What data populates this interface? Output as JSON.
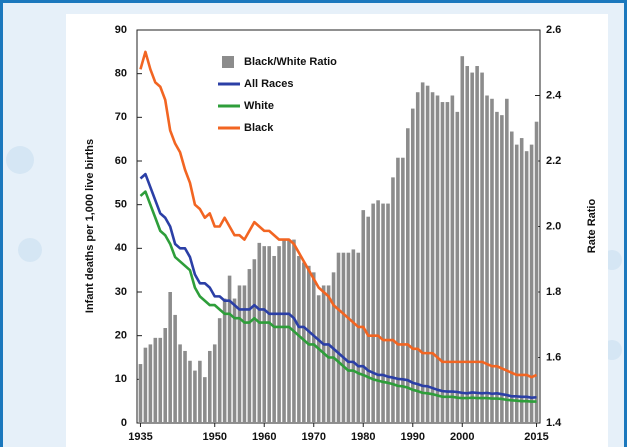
{
  "chart_data": {
    "type": "combo",
    "y_label": "Infant deaths per 1,000 live births",
    "y2_label": "Rate Ratio",
    "x": [
      1935,
      1936,
      1937,
      1938,
      1939,
      1940,
      1941,
      1942,
      1943,
      1944,
      1945,
      1946,
      1947,
      1948,
      1949,
      1950,
      1951,
      1952,
      1953,
      1954,
      1955,
      1956,
      1957,
      1958,
      1959,
      1960,
      1961,
      1962,
      1963,
      1964,
      1965,
      1966,
      1967,
      1968,
      1969,
      1970,
      1971,
      1972,
      1973,
      1974,
      1975,
      1976,
      1977,
      1978,
      1979,
      1980,
      1981,
      1982,
      1983,
      1984,
      1985,
      1986,
      1987,
      1988,
      1989,
      1990,
      1991,
      1992,
      1993,
      1994,
      1995,
      1996,
      1997,
      1998,
      1999,
      2000,
      2001,
      2002,
      2003,
      2004,
      2005,
      2006,
      2007,
      2008,
      2009,
      2010,
      2011,
      2012,
      2013,
      2014,
      2015
    ],
    "xlim": [
      1934.3,
      2015.7
    ],
    "xticks": [
      1935,
      1950,
      1960,
      1970,
      1980,
      1990,
      2000,
      2015
    ],
    "ylim": [
      0,
      90
    ],
    "yticks": [
      0,
      10,
      20,
      30,
      40,
      50,
      60,
      70,
      80,
      90
    ],
    "y2lim": [
      1.4,
      2.6
    ],
    "y2ticks": [
      1.4,
      1.6,
      1.8,
      {
        "value": 2,
        "label": "2.0"
      },
      2.2,
      2.4,
      2.6
    ],
    "legend": "upper-left",
    "series": [
      {
        "name": "Black/White Ratio",
        "type": "bar",
        "axis": "y2",
        "color": "#8c8c8c",
        "values": [
          1.58,
          1.63,
          1.64,
          1.66,
          1.66,
          1.69,
          1.8,
          1.73,
          1.64,
          1.62,
          1.59,
          1.56,
          1.59,
          1.54,
          1.62,
          1.64,
          1.72,
          1.78,
          1.85,
          1.78,
          1.82,
          1.82,
          1.87,
          1.9,
          1.95,
          1.94,
          1.94,
          1.91,
          1.94,
          1.96,
          1.96,
          1.96,
          1.91,
          1.89,
          1.88,
          1.86,
          1.79,
          1.82,
          1.82,
          1.86,
          1.92,
          1.92,
          1.92,
          1.93,
          1.92,
          2.05,
          2.03,
          2.07,
          2.08,
          2.07,
          2.07,
          2.15,
          2.21,
          2.21,
          2.3,
          2.36,
          2.41,
          2.44,
          2.43,
          2.41,
          2.4,
          2.38,
          2.38,
          2.4,
          2.35,
          2.52,
          2.49,
          2.47,
          2.49,
          2.47,
          2.4,
          2.39,
          2.35,
          2.34,
          2.39,
          2.29,
          2.25,
          2.27,
          2.23,
          2.25,
          2.32
        ]
      },
      {
        "name": "All Races",
        "type": "line",
        "color": "#2b3fa6",
        "values": [
          56,
          57,
          54,
          51,
          48,
          47,
          45,
          41,
          40,
          40,
          38,
          34,
          32,
          32,
          31,
          29,
          29,
          28,
          28,
          27,
          26,
          26,
          26,
          27,
          26,
          26,
          25,
          25,
          25,
          25,
          25,
          24,
          22,
          22,
          21,
          20,
          19,
          18,
          18,
          17,
          16,
          15,
          14,
          14,
          13,
          13,
          12,
          11.5,
          11,
          11,
          10.6,
          10.4,
          10.1,
          10,
          9.8,
          9.2,
          8.9,
          8.5,
          8.4,
          8,
          7.6,
          7.3,
          7.2,
          7.2,
          7.1,
          6.9,
          6.8,
          7,
          6.9,
          6.8,
          6.9,
          6.7,
          6.8,
          6.6,
          6.4,
          6.1,
          6.1,
          6,
          6,
          5.8,
          5.9
        ]
      },
      {
        "name": "White",
        "type": "line",
        "color": "#2e9e3a",
        "values": [
          52,
          53,
          50,
          47,
          44,
          43,
          41,
          38,
          37,
          36,
          35,
          31,
          29,
          28,
          27,
          27,
          26,
          25,
          25,
          24,
          24,
          23,
          23,
          24,
          23,
          23,
          23,
          22,
          22,
          22,
          22,
          21,
          20,
          19,
          18,
          18,
          17,
          16,
          15,
          15,
          14,
          13,
          12,
          12,
          11.4,
          11,
          10.5,
          10,
          9.7,
          9.4,
          9.2,
          8.9,
          8.5,
          8.4,
          8.1,
          7.6,
          7.3,
          6.9,
          6.8,
          6.6,
          6.3,
          6,
          6,
          6,
          5.8,
          5.7,
          5.7,
          5.8,
          5.7,
          5.7,
          5.7,
          5.6,
          5.6,
          5.5,
          5.3,
          5.2,
          5.1,
          5,
          5,
          4.9,
          4.9
        ]
      },
      {
        "name": "Black",
        "type": "line",
        "color": "#f26522",
        "values": [
          81,
          85,
          81,
          78,
          77,
          74,
          67,
          64,
          62,
          58,
          55,
          50,
          49,
          47,
          48,
          45,
          45,
          47,
          45,
          43,
          43,
          42,
          44,
          46,
          45,
          44,
          44,
          43,
          42,
          42,
          42,
          41,
          39,
          37,
          35,
          33,
          31,
          30,
          29,
          27,
          26,
          25,
          24,
          23,
          22,
          22,
          20,
          20,
          20,
          19,
          19,
          19,
          18,
          18,
          18,
          17,
          17,
          16,
          16,
          16,
          15,
          14,
          14,
          14,
          14,
          14,
          14,
          14,
          14,
          14,
          13.5,
          13,
          13,
          12.5,
          12,
          11.5,
          11,
          11,
          11,
          10.5,
          11
        ]
      }
    ]
  }
}
